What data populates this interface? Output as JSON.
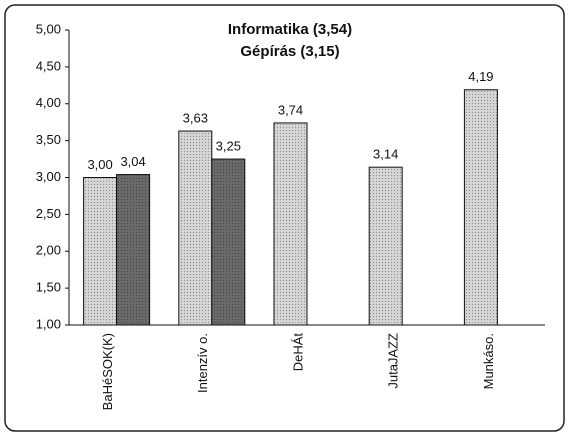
{
  "chart_data": {
    "type": "bar",
    "title": "Informatika (3,54)",
    "subtitle": "Gépírás (3,15)",
    "categories": [
      "BaHéSOK(K)",
      "Intenzív o.",
      "DeHÁt",
      "JutaJAZZ",
      "Munkáso."
    ],
    "series": [
      {
        "color": "#d6d6d6",
        "values": [
          3.0,
          3.63,
          3.74,
          3.14,
          4.19
        ],
        "value_labels": [
          "3,00",
          "3,63",
          "3,74",
          "3,14",
          "4,19"
        ]
      },
      {
        "color": "#6a6a6a",
        "values": [
          3.04,
          3.25,
          null,
          null,
          null
        ],
        "value_labels": [
          "3,04",
          "3,25",
          null,
          null,
          null
        ]
      }
    ],
    "ylim": [
      1,
      5
    ],
    "yticks": [
      {
        "value": 1,
        "label": "1,00"
      },
      {
        "value": 1.5,
        "label": "1,50"
      },
      {
        "value": 2,
        "label": "2,00"
      },
      {
        "value": 2.5,
        "label": "2,50"
      },
      {
        "value": 3,
        "label": "3,00"
      },
      {
        "value": 3.5,
        "label": "3,50"
      },
      {
        "value": 4,
        "label": "4,00"
      },
      {
        "value": 4.5,
        "label": "4,50"
      },
      {
        "value": 5,
        "label": "5,00"
      }
    ]
  }
}
